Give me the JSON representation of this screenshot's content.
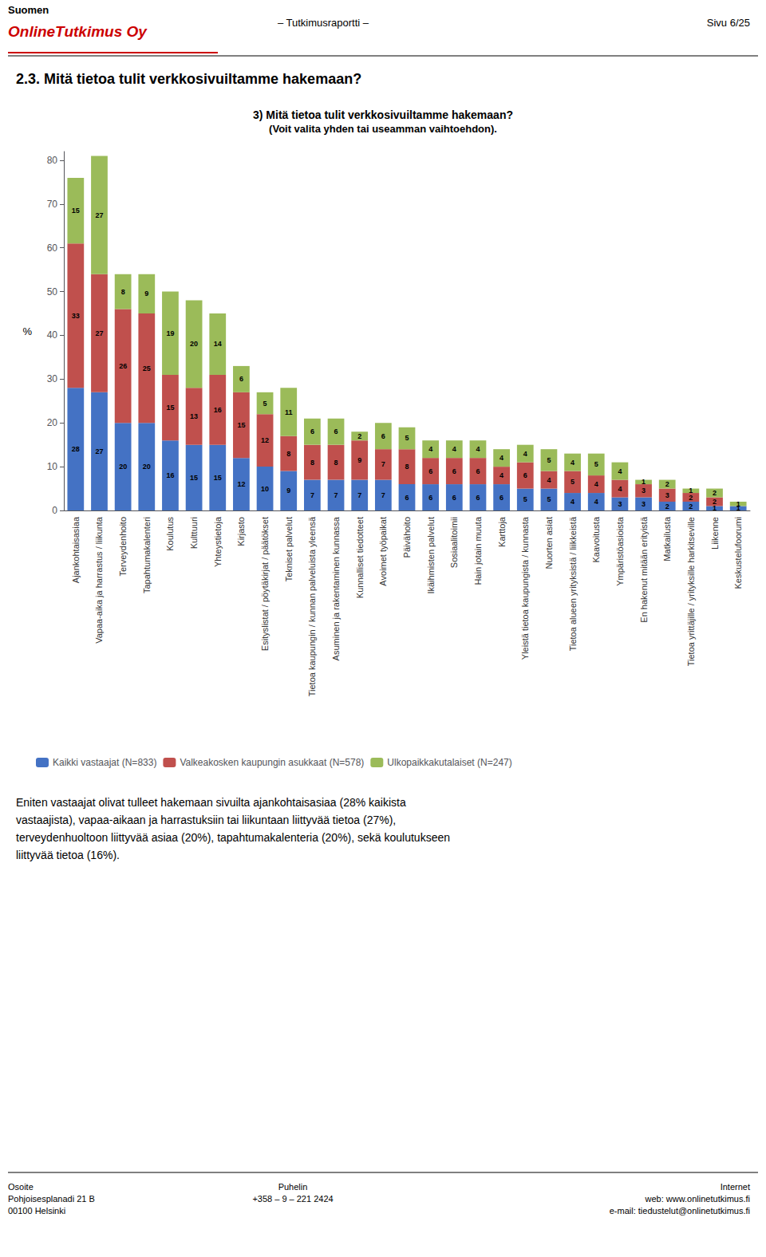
{
  "chart_data": {
    "type": "bar",
    "title": "3) Mitä tietoa tulit verkkosivuiltamme hakemaan?",
    "subtitle": "(Voit valita yhden tai useamman vaihtoehdon).",
    "ylabel": "%",
    "ylim": [
      0,
      82
    ],
    "yticks": [
      0,
      10,
      20,
      30,
      40,
      50,
      60,
      70,
      80
    ],
    "grid": false,
    "stacked": true,
    "data_labels": true,
    "legend": "bottom",
    "categories": [
      "Ajankohtaisasiaa",
      "Vapaa-aika ja harrastus / liikunta",
      "Terveydenhoito",
      "Tapahtumakalenteri",
      "Koulutus",
      "Kulttuuri",
      "Yhteystietoja",
      "Kirjasto",
      "Esityslistat / pöytäkirjat / päätökset",
      "Tekniset palvelut",
      "Tietoa kaupungin / kunnan palveluista yleensä",
      "Asuminen ja rakentaminen kunnassa",
      "Kunnalliset tiedotteet",
      "Avoimet työpaikat",
      "Päivähoito",
      "Ikäihmisten palvelut",
      "Sosiaalitoimii",
      "Hain jotain muuta",
      "Karttoja",
      "Yleistä tietoa kaupungista / kunnasta",
      "Nuorten asiat",
      "Tietoa alueen yrityksistä / liikkeistä",
      "Kaavoitusta",
      "Ympäristöasioista",
      "En hakenut mitään erityistä",
      "Matkailusta",
      "Tietoa yrittäjille / yrityksille harkitseville",
      "Liikenne",
      "Keskustelufoorumi"
    ],
    "series": [
      {
        "name": "Kaikki vastaajat (N=833)",
        "color": "#4472c4",
        "values": [
          28,
          27,
          20,
          20,
          16,
          15,
          15,
          12,
          10,
          9,
          7,
          7,
          7,
          7,
          6,
          6,
          6,
          6,
          6,
          5,
          5,
          4,
          4,
          3,
          3,
          2,
          2,
          1,
          1
        ]
      },
      {
        "name": "Valkeakosken kaupungin asukkaat (N=578)",
        "color": "#c0504d",
        "values": [
          33,
          27,
          26,
          25,
          15,
          13,
          16,
          15,
          12,
          8,
          8,
          8,
          9,
          7,
          8,
          6,
          6,
          6,
          4,
          6,
          4,
          5,
          4,
          4,
          3,
          3,
          2,
          2,
          0
        ]
      },
      {
        "name": "Ulkopaikkakutalaiset (N=247)",
        "color": "#9bbb59",
        "values": [
          15,
          27,
          8,
          9,
          19,
          20,
          14,
          6,
          5,
          11,
          6,
          6,
          2,
          6,
          5,
          4,
          4,
          4,
          4,
          4,
          5,
          4,
          5,
          4,
          1,
          2,
          1,
          2,
          1
        ]
      }
    ],
    "annotations": [
      "Suomen",
      "OnlineTutkimus Oy",
      "– Tutkimusraportti –",
      "Sivu 6/25",
      "2.3. Mitä tietoa tulit verkkosivuiltamme hakemaan?",
      "Eniten vastaajat olivat tulleet hakemaan sivuilta ajankohtaisasiaa (28% kaikista\nvastaajista), vapaa-aikaan ja harrastuksiin tai liikuntaan liittyvää tietoa (27%),\nterveydenhuoltoon liittyvää asiaa (20%), tapahtumakalenteria (20%), sekä koulutukseen\nliittyvää tietoa (16%).",
      "Osoite\nPohjoisesplanadi 21 B\n00100 Helsinki",
      "Puhelin\n+358 – 9 – 221 2424",
      "Internet\nweb: www.onlinetutkimus.fi\ne-mail: tiedustelut@onlinetutkimus.fi"
    ]
  }
}
